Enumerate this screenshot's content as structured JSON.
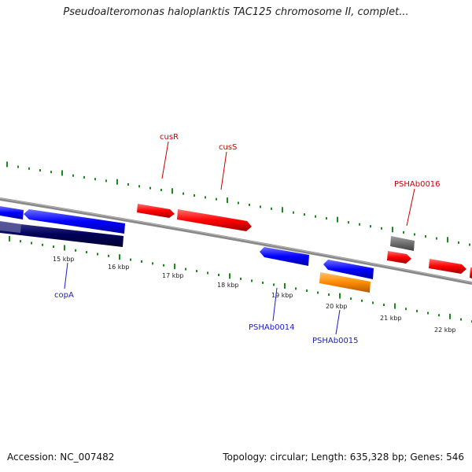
{
  "title": "Pseudoalteromonas haloplanktis TAC125 chromosome II, complet...",
  "footer": {
    "accession": "Accession: NC_007482",
    "stats": "Topology: circular; Length: 635,328 bp; Genes: 546"
  },
  "ticks": [
    {
      "label": "15 kbp"
    },
    {
      "label": "16 kbp"
    },
    {
      "label": "17 kbp"
    },
    {
      "label": "18 kbp"
    },
    {
      "label": "19 kbp"
    },
    {
      "label": "20 kbp"
    },
    {
      "label": "21 kbp"
    },
    {
      "label": "22 kbp"
    }
  ],
  "gene_labels": [
    {
      "name": "cusR",
      "strand": "forward"
    },
    {
      "name": "cusS",
      "strand": "forward"
    },
    {
      "name": "PSHAb0016",
      "strand": "forward"
    },
    {
      "name": "copA",
      "strand": "reverse"
    },
    {
      "name": "PSHAb0014",
      "strand": "reverse"
    },
    {
      "name": "PSHAb0015",
      "strand": "reverse"
    }
  ],
  "colors": {
    "forward_gene": "#ff0000",
    "reverse_gene": "#0000ff",
    "dark_gene": "#00005a",
    "orange_gene": "#ff8c00",
    "grey_gene": "#6e6e6e",
    "backbone": "#888888",
    "tick": "#1a8a1a"
  }
}
